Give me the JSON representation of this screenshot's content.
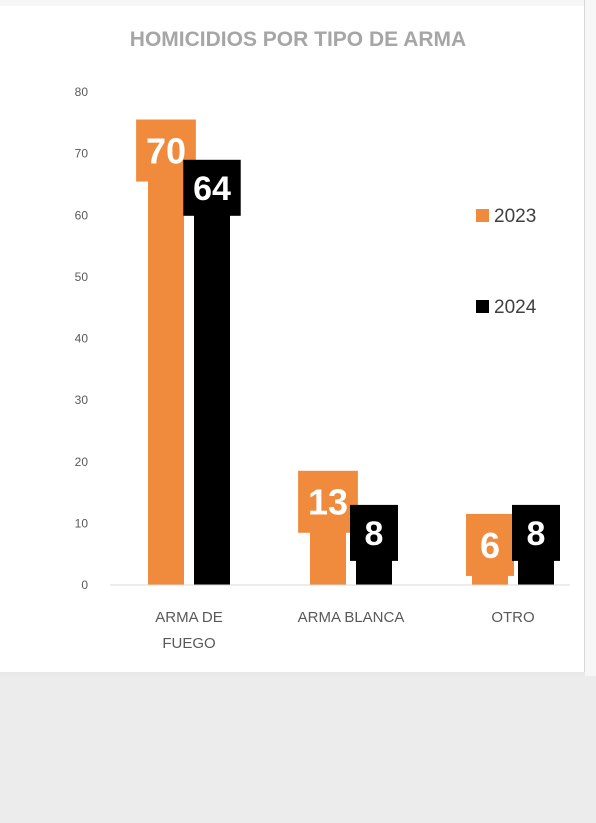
{
  "chart_data": {
    "type": "bar",
    "title": "HOMICIDIOS POR TIPO DE ARMA",
    "categories": [
      [
        "ARMA DE",
        "FUEGO"
      ],
      [
        "ARMA BLANCA"
      ],
      [
        "OTRO"
      ]
    ],
    "series": [
      {
        "name": "2023",
        "values": [
          70,
          13,
          6
        ],
        "color": "#f08a3c"
      },
      {
        "name": "2024",
        "values": [
          64,
          8,
          8
        ],
        "color": "#000000"
      }
    ],
    "ylim": [
      0,
      80
    ],
    "yticks": [
      0,
      10,
      20,
      30,
      40,
      50,
      60,
      70,
      80
    ],
    "legend": "right",
    "grid": false,
    "data_labels": true
  }
}
